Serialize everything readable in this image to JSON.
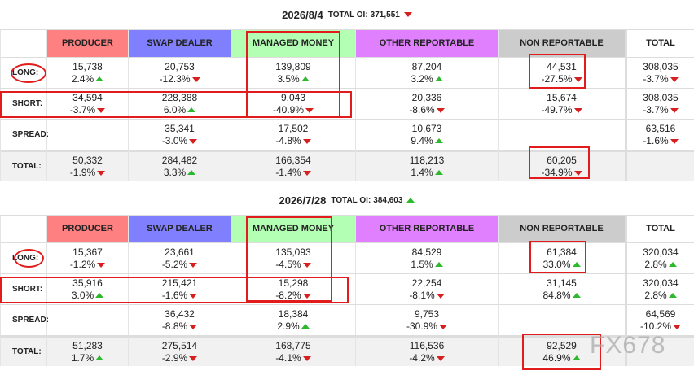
{
  "watermark": "FX678",
  "sections": [
    {
      "date": "2026/8/4",
      "total_oi_label": "TOTAL OI:",
      "total_oi": "371,551",
      "total_oi_trend": "down",
      "headers": [
        "PRODUCER",
        "SWAP DEALER",
        "MANAGED MONEY",
        "OTHER REPORTABLE",
        "NON REPORTABLE",
        "TOTAL"
      ],
      "rows": [
        {
          "label": "LONG:",
          "cells": [
            {
              "value": "15,738",
              "change": "2.4%",
              "trend": "up"
            },
            {
              "value": "20,753",
              "change": "-12.3%",
              "trend": "down"
            },
            {
              "value": "139,809",
              "change": "3.5%",
              "trend": "up"
            },
            {
              "value": "87,204",
              "change": "3.2%",
              "trend": "up"
            },
            {
              "value": "44,531",
              "change": "-27.5%",
              "trend": "down"
            },
            {
              "value": "308,035",
              "change": "-3.7%",
              "trend": "down"
            }
          ]
        },
        {
          "label": "SHORT:",
          "cells": [
            {
              "value": "34,594",
              "change": "-3.7%",
              "trend": "down"
            },
            {
              "value": "228,388",
              "change": "6.0%",
              "trend": "up"
            },
            {
              "value": "9,043",
              "change": "-40.9%",
              "trend": "down"
            },
            {
              "value": "20,336",
              "change": "-8.6%",
              "trend": "down"
            },
            {
              "value": "15,674",
              "change": "-49.7%",
              "trend": "down"
            },
            {
              "value": "308,035",
              "change": "-3.7%",
              "trend": "down"
            }
          ]
        },
        {
          "label": "SPREAD:",
          "cells": [
            null,
            {
              "value": "35,341",
              "change": "-3.0%",
              "trend": "down"
            },
            {
              "value": "17,502",
              "change": "-4.8%",
              "trend": "down"
            },
            {
              "value": "10,673",
              "change": "9.4%",
              "trend": "up"
            },
            null,
            {
              "value": "63,516",
              "change": "-1.6%",
              "trend": "down"
            }
          ]
        },
        {
          "label": "TOTAL:",
          "cells": [
            {
              "value": "50,332",
              "change": "-1.9%",
              "trend": "down"
            },
            {
              "value": "284,482",
              "change": "3.3%",
              "trend": "up"
            },
            {
              "value": "166,354",
              "change": "-1.4%",
              "trend": "down"
            },
            {
              "value": "118,213",
              "change": "1.4%",
              "trend": "up"
            },
            {
              "value": "60,205",
              "change": "-34.9%",
              "trend": "down"
            },
            null
          ]
        }
      ]
    },
    {
      "date": "2026/7/28",
      "total_oi_label": "TOTAL OI:",
      "total_oi": "384,603",
      "total_oi_trend": "up",
      "headers": [
        "PRODUCER",
        "SWAP DEALER",
        "MANAGED MONEY",
        "OTHER REPORTABLE",
        "NON REPORTABLE",
        "TOTAL"
      ],
      "rows": [
        {
          "label": "LONG:",
          "cells": [
            {
              "value": "15,367",
              "change": "-1.2%",
              "trend": "down"
            },
            {
              "value": "23,661",
              "change": "-5.2%",
              "trend": "down"
            },
            {
              "value": "135,093",
              "change": "-4.5%",
              "trend": "down"
            },
            {
              "value": "84,529",
              "change": "1.5%",
              "trend": "up"
            },
            {
              "value": "61,384",
              "change": "33.0%",
              "trend": "up"
            },
            {
              "value": "320,034",
              "change": "2.8%",
              "trend": "up"
            }
          ]
        },
        {
          "label": "SHORT:",
          "cells": [
            {
              "value": "35,916",
              "change": "3.0%",
              "trend": "up"
            },
            {
              "value": "215,421",
              "change": "-1.6%",
              "trend": "down"
            },
            {
              "value": "15,298",
              "change": "-8.2%",
              "trend": "down"
            },
            {
              "value": "22,254",
              "change": "-8.1%",
              "trend": "down"
            },
            {
              "value": "31,145",
              "change": "84.8%",
              "trend": "up"
            },
            {
              "value": "320,034",
              "change": "2.8%",
              "trend": "up"
            }
          ]
        },
        {
          "label": "SPREAD:",
          "cells": [
            null,
            {
              "value": "36,432",
              "change": "-8.8%",
              "trend": "down"
            },
            {
              "value": "18,384",
              "change": "2.9%",
              "trend": "up"
            },
            {
              "value": "9,753",
              "change": "-30.9%",
              "trend": "down"
            },
            null,
            {
              "value": "64,569",
              "change": "-10.2%",
              "trend": "down"
            }
          ]
        },
        {
          "label": "TOTAL:",
          "cells": [
            {
              "value": "51,283",
              "change": "1.7%",
              "trend": "up"
            },
            {
              "value": "275,514",
              "change": "-2.9%",
              "trend": "down"
            },
            {
              "value": "168,775",
              "change": "-4.1%",
              "trend": "down"
            },
            {
              "value": "116,536",
              "change": "-4.2%",
              "trend": "down"
            },
            {
              "value": "92,529",
              "change": "46.9%",
              "trend": "up"
            },
            null
          ]
        }
      ]
    }
  ]
}
